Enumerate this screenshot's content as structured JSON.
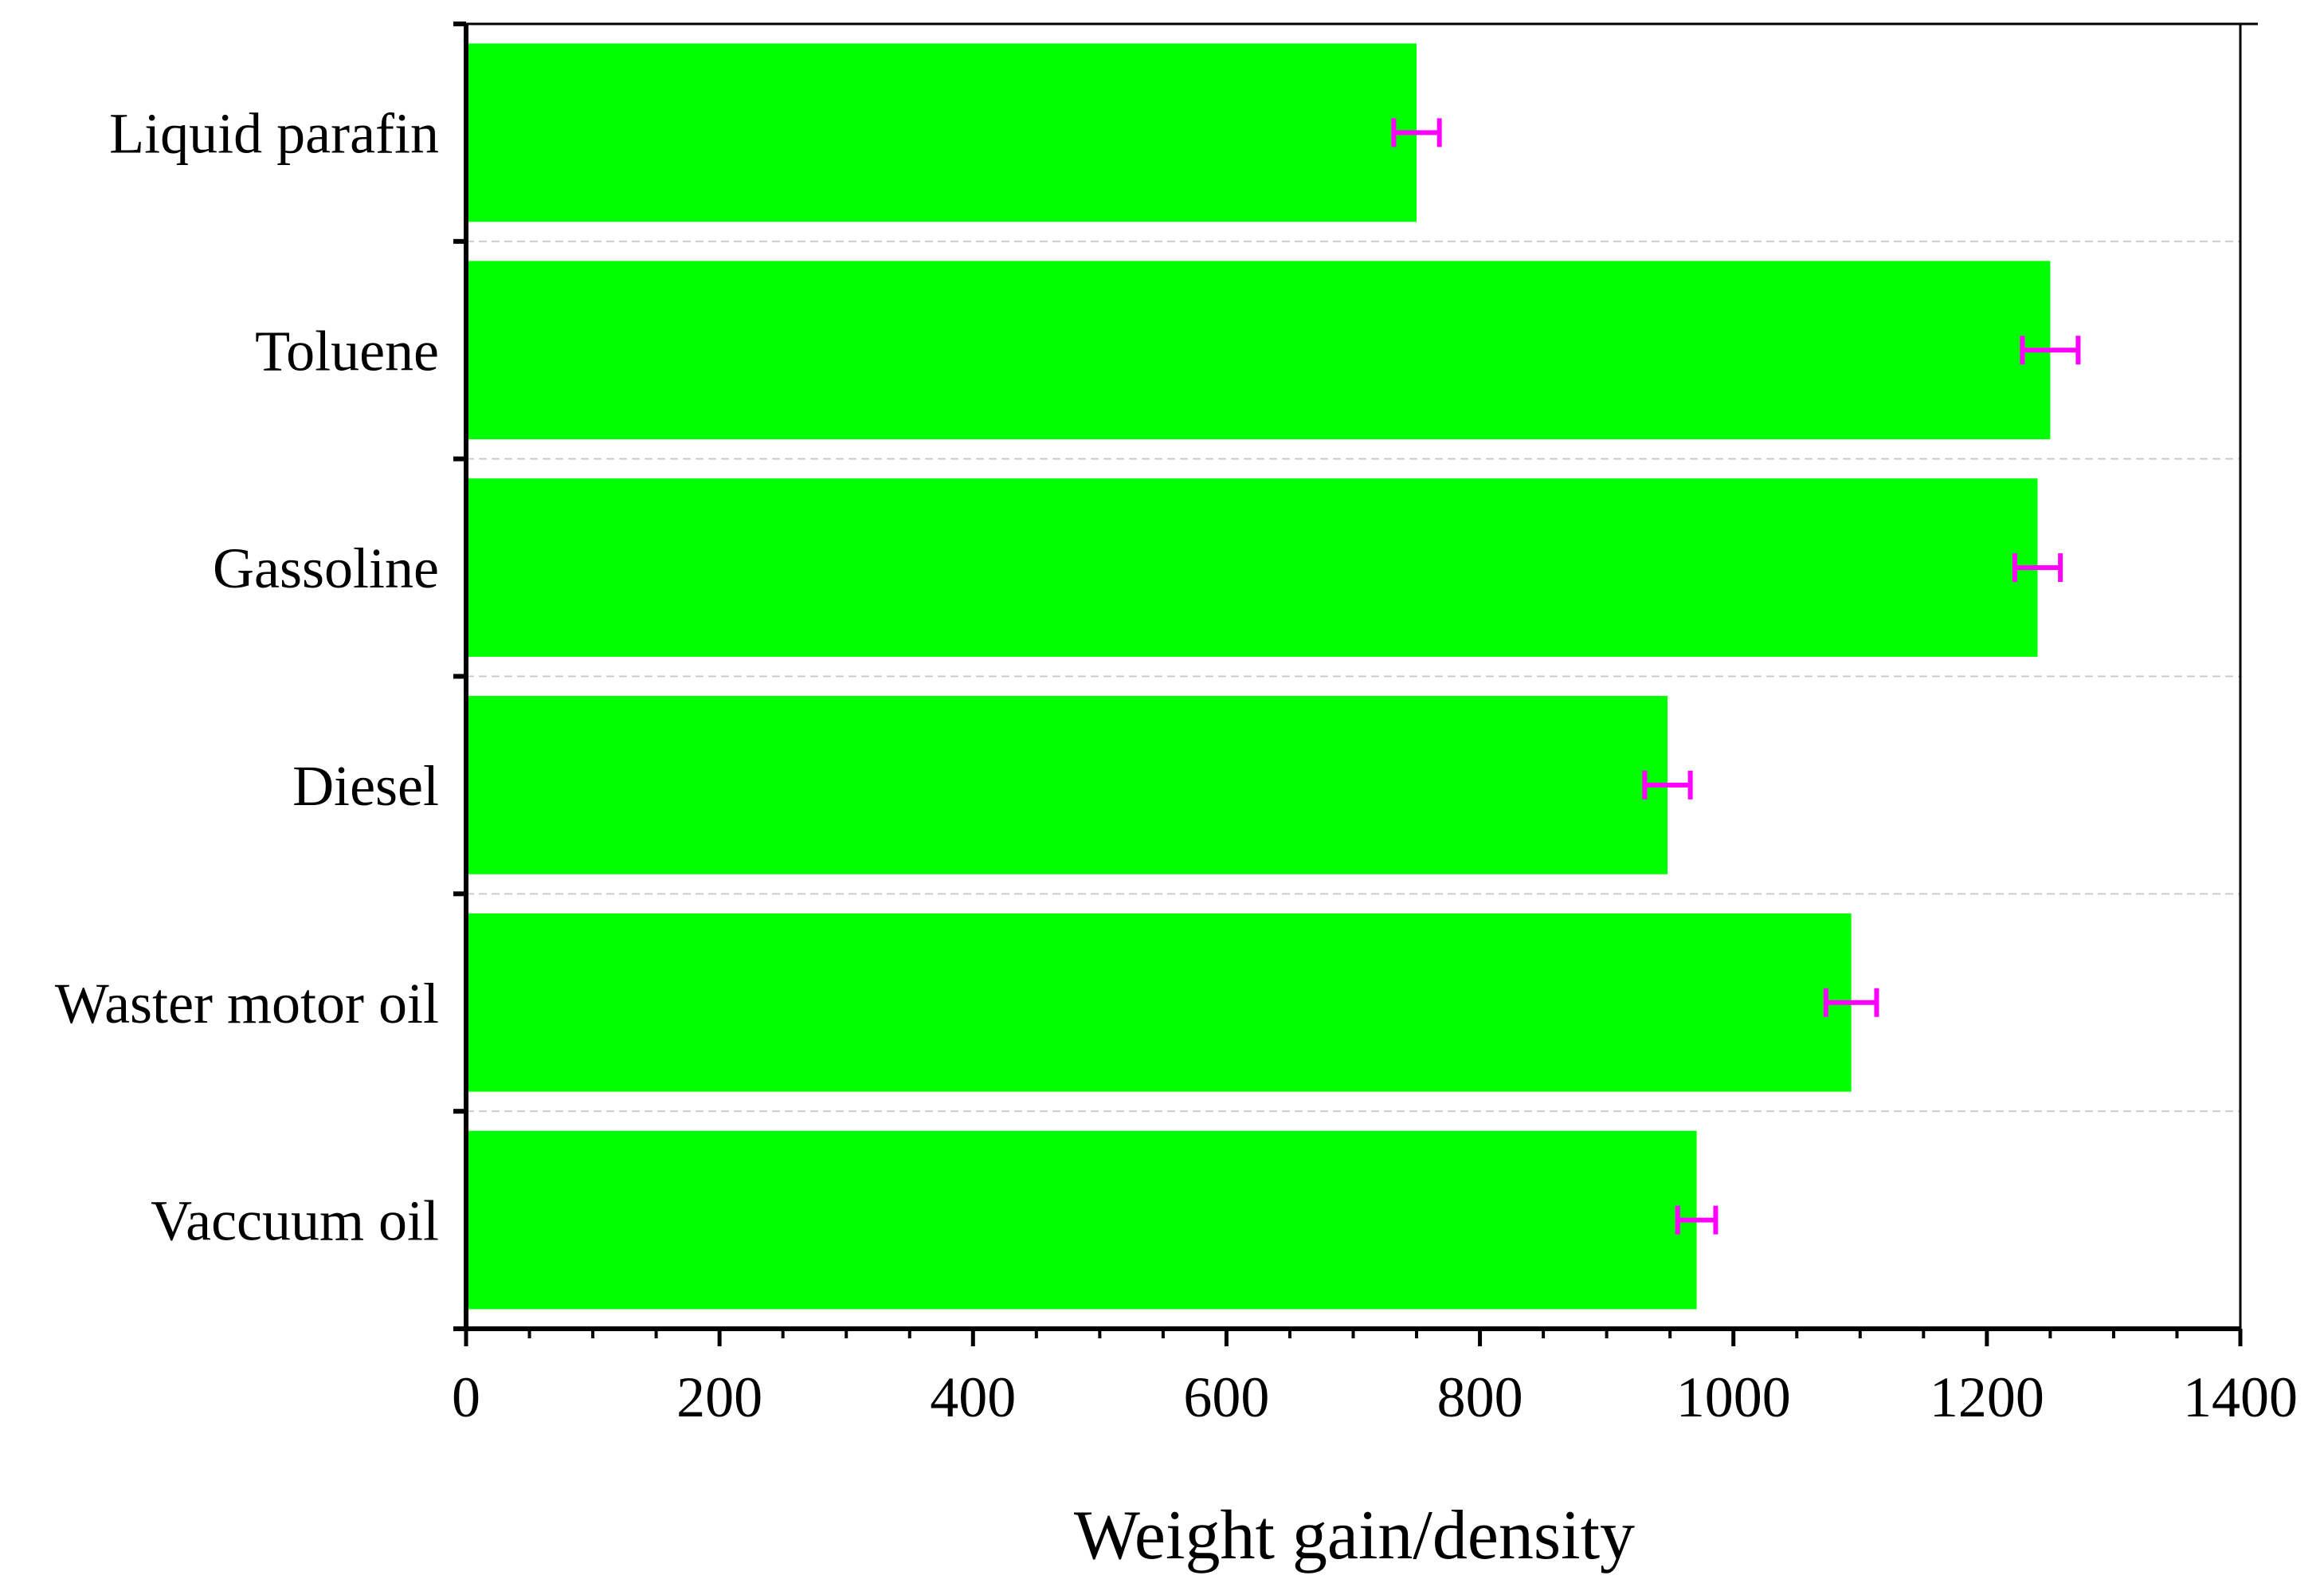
{
  "chart_data": {
    "type": "bar",
    "orientation": "horizontal",
    "title": "",
    "xlabel": "Weight gain/density",
    "ylabel": "",
    "xlim": [
      0,
      1400
    ],
    "x_ticks": [
      0,
      200,
      400,
      600,
      800,
      1000,
      1200,
      1400
    ],
    "x_tick_labels": [
      "0",
      "200",
      "400",
      "600",
      "800",
      "1000",
      "1200",
      "1400"
    ],
    "categories": [
      "Liquid parafin",
      "Toluene",
      "Gassoline",
      "Diesel",
      "Waster motor oil",
      "Vaccuum oil"
    ],
    "values": [
      750,
      1250,
      1240,
      948,
      1093,
      971
    ],
    "errors": [
      18,
      22,
      18,
      18,
      20,
      15
    ],
    "grid": "horizontal-dashed",
    "colors": {
      "bar": "#00ff00",
      "error": "#ff00ff",
      "axis": "#000000",
      "grid": "#cccccc"
    }
  }
}
